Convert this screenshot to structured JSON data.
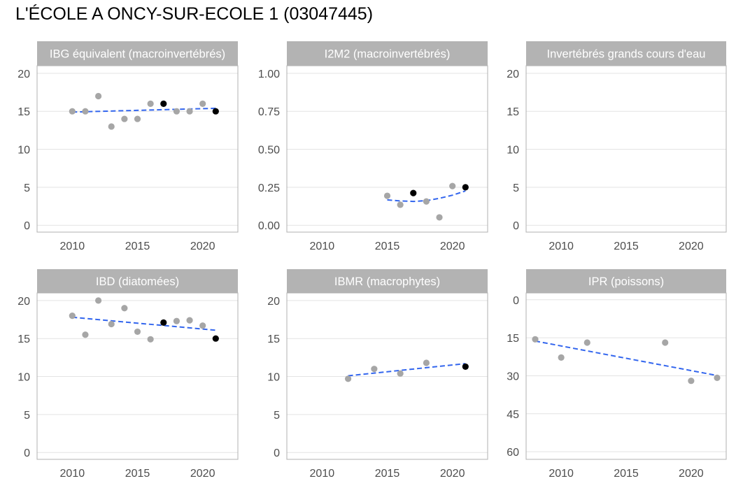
{
  "page": {
    "title": "L'ÉCOLE A ONCY-SUR-ECOLE 1 (03047445)"
  },
  "colors": {
    "strip": "#b3b3b3",
    "point": "#a6a6a6",
    "highlight": "#000000",
    "trend": "#3366ee",
    "grid": "#e3e3e3",
    "border": "#b0b0b0"
  },
  "chart_data": [
    {
      "type": "scatter",
      "title": "IBG équivalent (macroinvertébrés)",
      "xlim": [
        2007.3,
        2022.7
      ],
      "ylim": [
        -0.9,
        21
      ],
      "xticks": [
        2010,
        2015,
        2020
      ],
      "yticks": [
        0,
        5,
        10,
        15,
        20
      ],
      "y_reversed": false,
      "points": [
        {
          "x": 2010,
          "y": 15
        },
        {
          "x": 2011,
          "y": 15
        },
        {
          "x": 2012,
          "y": 17
        },
        {
          "x": 2013,
          "y": 13
        },
        {
          "x": 2014,
          "y": 14
        },
        {
          "x": 2015,
          "y": 14
        },
        {
          "x": 2016,
          "y": 16
        },
        {
          "x": 2017,
          "y": 16,
          "highlight": true
        },
        {
          "x": 2018,
          "y": 15
        },
        {
          "x": 2019,
          "y": 15
        },
        {
          "x": 2020,
          "y": 16
        },
        {
          "x": 2021,
          "y": 15,
          "highlight": true
        }
      ],
      "trend": [
        {
          "x": 2010,
          "y": 14.9
        },
        {
          "x": 2021,
          "y": 15.4
        }
      ]
    },
    {
      "type": "scatter",
      "title": "I2M2 (macroinvertébrés)",
      "xlim": [
        2007.3,
        2022.7
      ],
      "ylim": [
        -0.045,
        1.05
      ],
      "xticks": [
        2010,
        2015,
        2020
      ],
      "yticks": [
        0.0,
        0.25,
        0.5,
        0.75,
        1.0
      ],
      "ytick_labels": [
        "0.00",
        "0.25",
        "0.50",
        "0.75",
        "1.00"
      ],
      "y_reversed": false,
      "points": [
        {
          "x": 2015,
          "y": 0.194
        },
        {
          "x": 2016,
          "y": 0.135
        },
        {
          "x": 2017,
          "y": 0.212,
          "highlight": true
        },
        {
          "x": 2018,
          "y": 0.157
        },
        {
          "x": 2019,
          "y": 0.052
        },
        {
          "x": 2020,
          "y": 0.258
        },
        {
          "x": 2021,
          "y": 0.25,
          "highlight": true
        }
      ],
      "trend": [
        {
          "x": 2015,
          "y": 0.167
        },
        {
          "x": 2016,
          "y": 0.16
        },
        {
          "x": 2017,
          "y": 0.157
        },
        {
          "x": 2018,
          "y": 0.162
        },
        {
          "x": 2019,
          "y": 0.177
        },
        {
          "x": 2020,
          "y": 0.198
        },
        {
          "x": 2021,
          "y": 0.226
        }
      ]
    },
    {
      "type": "scatter",
      "title": "Invertébrés grands cours d'eau",
      "xlim": [
        2007.3,
        2022.7
      ],
      "ylim": [
        -0.9,
        21
      ],
      "xticks": [
        2010,
        2015,
        2020
      ],
      "yticks": [
        0,
        5,
        10,
        15,
        20
      ],
      "y_reversed": false,
      "points": [],
      "trend": []
    },
    {
      "type": "scatter",
      "title": "IBD (diatomées)",
      "xlim": [
        2007.3,
        2022.7
      ],
      "ylim": [
        -0.9,
        21
      ],
      "xticks": [
        2010,
        2015,
        2020
      ],
      "yticks": [
        0,
        5,
        10,
        15,
        20
      ],
      "y_reversed": false,
      "points": [
        {
          "x": 2010,
          "y": 18
        },
        {
          "x": 2011,
          "y": 15.5
        },
        {
          "x": 2012,
          "y": 20
        },
        {
          "x": 2013,
          "y": 16.9
        },
        {
          "x": 2014,
          "y": 19
        },
        {
          "x": 2015,
          "y": 15.9
        },
        {
          "x": 2016,
          "y": 14.9
        },
        {
          "x": 2017,
          "y": 17.1,
          "highlight": true
        },
        {
          "x": 2018,
          "y": 17.3
        },
        {
          "x": 2019,
          "y": 17.4
        },
        {
          "x": 2020,
          "y": 16.7
        },
        {
          "x": 2021,
          "y": 15,
          "highlight": true
        }
      ],
      "trend": [
        {
          "x": 2010,
          "y": 17.8
        },
        {
          "x": 2021,
          "y": 16.1
        }
      ]
    },
    {
      "type": "scatter",
      "title": "IBMR (macrophytes)",
      "xlim": [
        2007.3,
        2022.7
      ],
      "ylim": [
        -0.9,
        21
      ],
      "xticks": [
        2010,
        2015,
        2020
      ],
      "yticks": [
        0,
        5,
        10,
        15,
        20
      ],
      "y_reversed": false,
      "points": [
        {
          "x": 2012,
          "y": 9.7
        },
        {
          "x": 2014,
          "y": 11
        },
        {
          "x": 2016,
          "y": 10.4
        },
        {
          "x": 2018,
          "y": 11.8
        },
        {
          "x": 2021,
          "y": 11.3,
          "highlight": true
        }
      ],
      "trend": [
        {
          "x": 2012,
          "y": 10.1
        },
        {
          "x": 2021,
          "y": 11.7
        }
      ]
    },
    {
      "type": "scatter",
      "title": "IPR (poissons)",
      "xlim": [
        2007.3,
        2022.7
      ],
      "ylim": [
        -2.7,
        63
      ],
      "xticks": [
        2010,
        2015,
        2020
      ],
      "yticks": [
        0,
        15,
        30,
        45,
        60
      ],
      "y_reversed": true,
      "points": [
        {
          "x": 2008,
          "y": 15.6
        },
        {
          "x": 2010,
          "y": 22.8
        },
        {
          "x": 2012,
          "y": 16.9
        },
        {
          "x": 2018,
          "y": 16.9
        },
        {
          "x": 2020,
          "y": 32
        },
        {
          "x": 2022,
          "y": 30.8
        }
      ],
      "trend": [
        {
          "x": 2008,
          "y": 16.3
        },
        {
          "x": 2022,
          "y": 29.9
        }
      ]
    }
  ]
}
